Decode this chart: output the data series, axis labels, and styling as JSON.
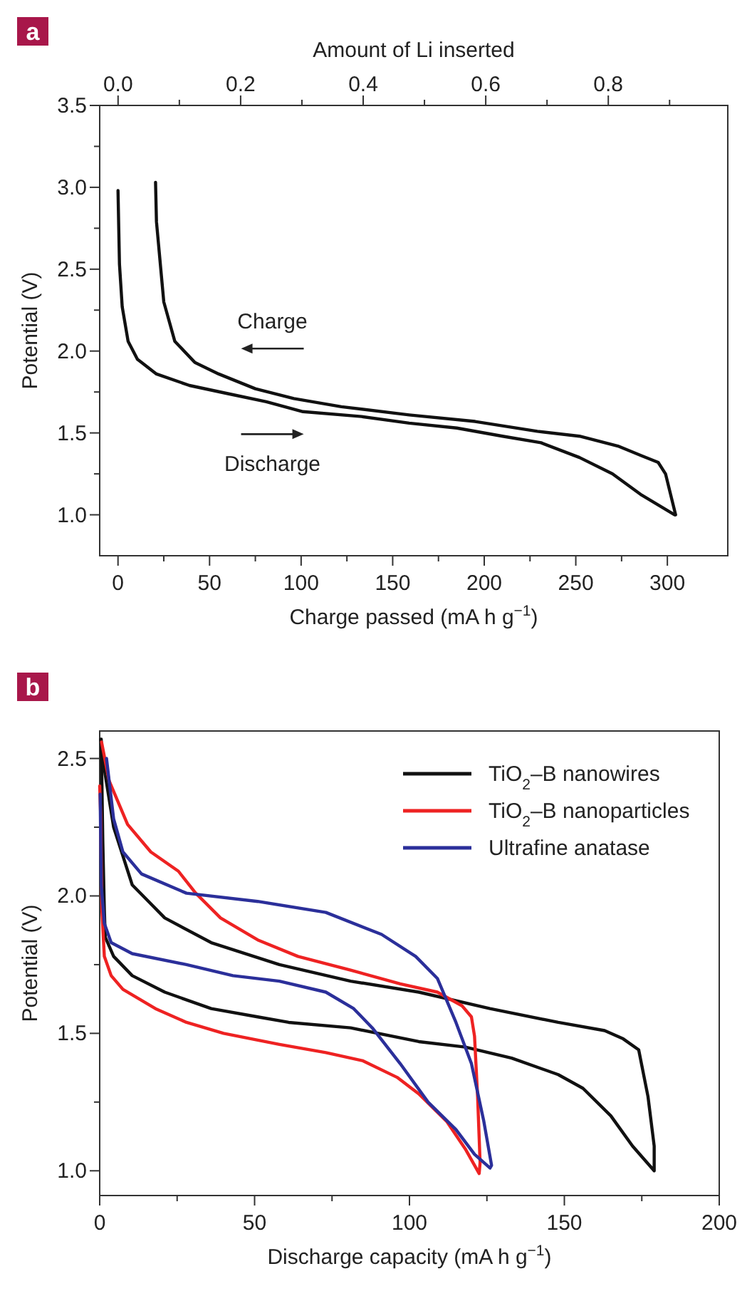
{
  "chart_data": [
    {
      "type": "line",
      "title": "a",
      "xlabel": "Charge passed (mA h g$^{−1}$)",
      "ylabel": "Potential (V)",
      "x2label": "Amount of Li inserted",
      "xlim": [
        -10,
        333
      ],
      "xticks": [
        0,
        {
          "value": 25,
          "label": null
        },
        50,
        {
          "value": 75,
          "label": null
        },
        100,
        {
          "value": 125,
          "label": null
        },
        150,
        {
          "value": 175,
          "label": null
        },
        200,
        {
          "value": 225,
          "label": null
        },
        250,
        {
          "value": 275,
          "label": null
        },
        300
      ],
      "x2lim": [
        -0.03,
        0.995
      ],
      "x2ticks": [
        {
          "value": 0,
          "label": "0.0"
        },
        {
          "value": 0.1,
          "label": null
        },
        0.2,
        {
          "value": 0.3,
          "label": null
        },
        0.4,
        {
          "value": 0.5,
          "label": null
        },
        0.6,
        {
          "value": 0.7,
          "label": null
        },
        0.8,
        {
          "value": 0.9,
          "label": null
        }
      ],
      "ylim": [
        0.75,
        3.5
      ],
      "yticks": [
        {
          "value": 1,
          "label": "1.0"
        },
        {
          "value": 1.25,
          "label": null
        },
        1.5,
        {
          "value": 1.75,
          "label": null
        },
        {
          "value": 2,
          "label": "2.0"
        },
        {
          "value": 2.25,
          "label": null
        },
        2.5,
        {
          "value": 2.75,
          "label": null
        },
        {
          "value": 3,
          "label": "3.0"
        },
        {
          "value": 3.25,
          "label": null
        },
        3.5
      ],
      "legend": false,
      "series": [
        {
          "color": "#111111",
          "x": [
            0,
            0.8,
            2.3,
            5.5,
            10.6,
            21,
            39,
            60,
            81,
            101,
            133,
            159,
            185,
            210,
            231,
            252,
            270,
            286,
            304
          ],
          "values": [
            2.98,
            2.53,
            2.27,
            2.06,
            1.95,
            1.86,
            1.79,
            1.74,
            1.69,
            1.63,
            1.6,
            1.56,
            1.53,
            1.48,
            1.44,
            1.35,
            1.25,
            1.12,
            1.0
          ]
        },
        {
          "color": "#111111",
          "x": [
            304.5,
            299,
            295,
            286,
            273,
            252,
            229,
            195,
            159,
            122,
            96,
            75,
            55,
            42,
            31,
            25,
            21,
            20.5
          ],
          "values": [
            1.0,
            1.25,
            1.32,
            1.36,
            1.42,
            1.48,
            1.51,
            1.57,
            1.61,
            1.66,
            1.71,
            1.77,
            1.86,
            1.93,
            2.06,
            2.3,
            2.79,
            3.03
          ]
        }
      ],
      "annotations": [
        "Charge",
        "Discharge"
      ]
    },
    {
      "type": "line",
      "title": "b",
      "xlabel": "Discharge capacity (mA h g$^{−1}$)",
      "ylabel": "Potential (V)",
      "xlim": [
        0,
        200
      ],
      "xticks": [
        0,
        {
          "value": 25,
          "label": null
        },
        50,
        {
          "value": 75,
          "label": null
        },
        100,
        {
          "value": 125,
          "label": null
        },
        150,
        {
          "value": 175,
          "label": null
        },
        200
      ],
      "ylim": [
        0.91,
        2.6
      ],
      "yticks": [
        {
          "value": 1,
          "label": "1.0"
        },
        {
          "value": 1.25,
          "label": null
        },
        1.5,
        {
          "value": 1.75,
          "label": null
        },
        {
          "value": 2,
          "label": "2.0"
        },
        {
          "value": 2.25,
          "label": null
        },
        2.5
      ],
      "legend": "top right",
      "series": [
        {
          "name": "TiO$_{2}$–B nanowires",
          "color": "#111111",
          "x": [
            0.5,
            1,
            1.5,
            1.8,
            4.5,
            10.5,
            21,
            36,
            51,
            61,
            81,
            103,
            118,
            133,
            148,
            156,
            165,
            172,
            179,
            179,
            177,
            174,
            169,
            163,
            148,
            126,
            103,
            81,
            58,
            36,
            21,
            10.5,
            4.5,
            1.8,
            0.3
          ],
          "values": [
            2.57,
            2.2,
            1.95,
            1.85,
            1.78,
            1.71,
            1.65,
            1.59,
            1.56,
            1.54,
            1.52,
            1.47,
            1.45,
            1.41,
            1.35,
            1.3,
            1.2,
            1.09,
            1.0,
            1.09,
            1.27,
            1.44,
            1.48,
            1.51,
            1.54,
            1.59,
            1.65,
            1.69,
            1.75,
            1.83,
            1.92,
            2.04,
            2.25,
            2.44,
            2.57
          ]
        },
        {
          "name": "TiO$_{2}$–B nanoparticles",
          "color": "#ee2222",
          "x": [
            0,
            0.3,
            0.7,
            1.5,
            3.7,
            7.5,
            18,
            28,
            40,
            58,
            73,
            85,
            96,
            103,
            112,
            118,
            122.5,
            122.8,
            122,
            121,
            120,
            117,
            109,
            97,
            81,
            64,
            51,
            39,
            31,
            25.4,
            16.5,
            9,
            3,
            0.6
          ],
          "values": [
            2.4,
            2.3,
            1.95,
            1.78,
            1.71,
            1.66,
            1.59,
            1.54,
            1.5,
            1.46,
            1.43,
            1.4,
            1.34,
            1.28,
            1.18,
            1.08,
            0.99,
            1.03,
            1.27,
            1.49,
            1.56,
            1.6,
            1.65,
            1.68,
            1.73,
            1.78,
            1.84,
            1.92,
            2.01,
            2.09,
            2.16,
            2.26,
            2.42,
            2.56
          ]
        },
        {
          "name": "Ultrafine anatase",
          "color": "#2b2f9a",
          "x": [
            0.15,
            0.5,
            1.5,
            3.7,
            10.5,
            28,
            43,
            58,
            73,
            82,
            88,
            97,
            106,
            115,
            121,
            126,
            126.5,
            124,
            120,
            115,
            109,
            102,
            91,
            73,
            51,
            28,
            13.5,
            7.5,
            4.5,
            2.2
          ],
          "values": [
            2.37,
            2.04,
            1.9,
            1.83,
            1.79,
            1.75,
            1.71,
            1.69,
            1.65,
            1.59,
            1.52,
            1.39,
            1.25,
            1.15,
            1.06,
            1.01,
            1.02,
            1.18,
            1.39,
            1.54,
            1.7,
            1.78,
            1.86,
            1.94,
            1.98,
            2.01,
            2.08,
            2.16,
            2.28,
            2.5
          ]
        }
      ]
    }
  ]
}
